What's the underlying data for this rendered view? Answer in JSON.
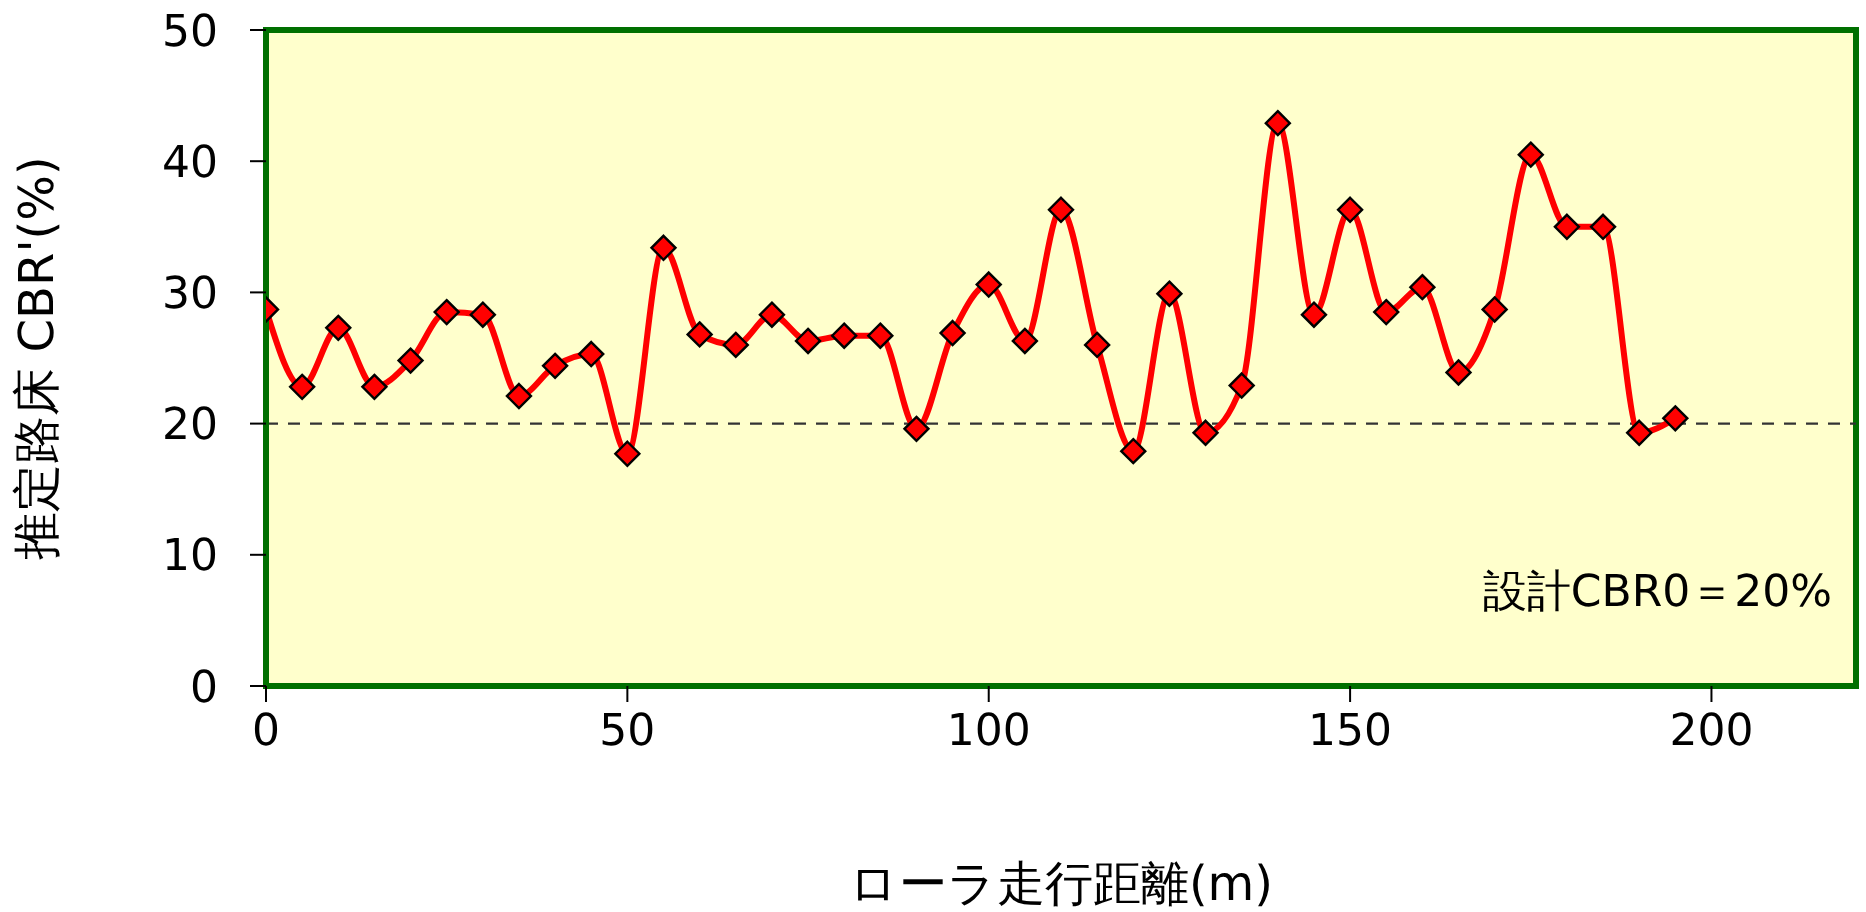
{
  "chart_data": {
    "type": "line",
    "xlabel": "ローラ走行距離(m)",
    "ylabel": "推定路床 CBR'(%)",
    "x": [
      0,
      5,
      10,
      15,
      20,
      25,
      30,
      35,
      40,
      45,
      50,
      55,
      60,
      65,
      70,
      75,
      80,
      85,
      90,
      95,
      100,
      105,
      110,
      115,
      120,
      125,
      130,
      135,
      140,
      145,
      150,
      155,
      160,
      165,
      170,
      175,
      180,
      185,
      190,
      195
    ],
    "series": [
      {
        "color": "#ff0000",
        "values": [
          28.7,
          22.8,
          27.3,
          22.8,
          24.8,
          28.5,
          28.3,
          22.1,
          24.4,
          25.3,
          17.7,
          33.4,
          26.8,
          26.0,
          28.3,
          26.3,
          26.7,
          26.7,
          19.6,
          26.9,
          30.6,
          26.3,
          36.3,
          26.0,
          17.9,
          29.9,
          19.3,
          22.9,
          42.9,
          28.3,
          36.3,
          28.5,
          30.4,
          23.9,
          28.7,
          40.5,
          35.0,
          35.0,
          19.3,
          20.4
        ]
      }
    ],
    "xlim": [
      0,
      220
    ],
    "xticks": [
      0,
      50,
      100,
      150,
      200
    ],
    "ylim": [
      0,
      50
    ],
    "yticks": [
      0,
      10,
      20,
      30,
      40,
      50
    ],
    "ref_lines": [
      {
        "axis": "y",
        "value": 20,
        "color": "#333333",
        "line_style": "dashed"
      }
    ],
    "annotations": [
      "設計CBR0＝20%"
    ],
    "marker": "diamond",
    "line_style": "solid",
    "grid": false,
    "legend": false
  }
}
